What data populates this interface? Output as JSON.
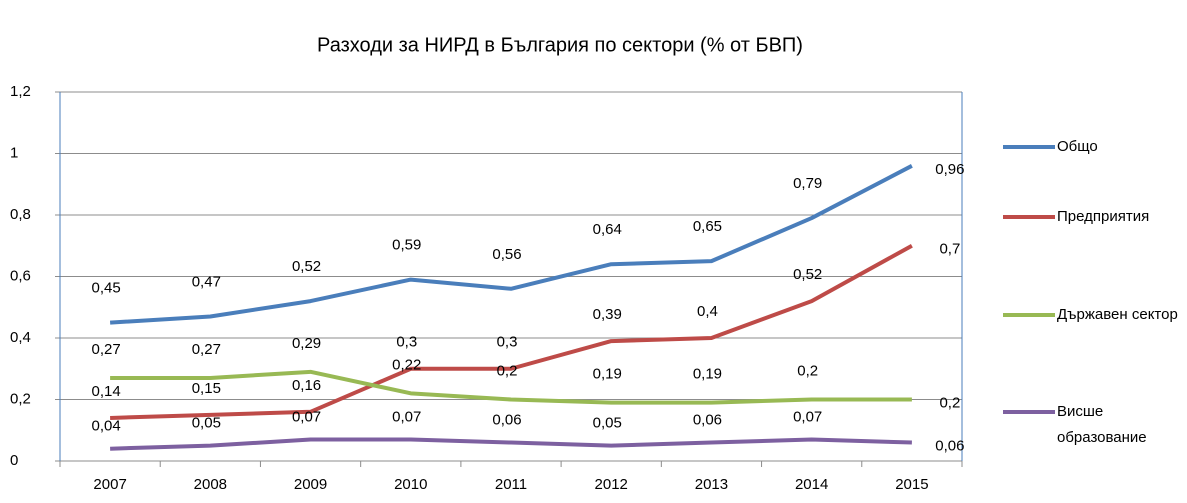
{
  "chart_data": {
    "type": "line",
    "title": "Разходи за НИРД в България по сектори (% от БВП)",
    "categories": [
      "2007",
      "2008",
      "2009",
      "2010",
      "2011",
      "2012",
      "2013",
      "2014",
      "2015"
    ],
    "series": [
      {
        "name": "Общо",
        "color": "#4a7ebb",
        "values": [
          0.45,
          0.47,
          0.52,
          0.59,
          0.56,
          0.64,
          0.65,
          0.79,
          0.96
        ],
        "value_labels": [
          "0,45",
          "0,47",
          "0,52",
          "0,59",
          "0,56",
          "0,64",
          "0,65",
          "0,79",
          "0,96"
        ]
      },
      {
        "name": "Предприятия",
        "color": "#be4b48",
        "values": [
          0.14,
          0.15,
          0.16,
          0.3,
          0.3,
          0.39,
          0.4,
          0.52,
          0.7
        ],
        "value_labels": [
          "0,14",
          "0,15",
          "0,16",
          "0,3",
          "0,3",
          "0,39",
          "0,4",
          "0,52",
          "0,7"
        ]
      },
      {
        "name": "Държавен сектор",
        "color": "#98b954",
        "values": [
          0.27,
          0.27,
          0.29,
          0.22,
          0.2,
          0.19,
          0.19,
          0.2,
          0.2
        ],
        "value_labels": [
          "0,27",
          "0,27",
          "0,29",
          "0,22",
          "0,2",
          "0,19",
          "0,19",
          "0,2",
          "0,2"
        ]
      },
      {
        "name": "Висше образование",
        "color": "#7d60a0",
        "values": [
          0.04,
          0.05,
          0.07,
          0.07,
          0.06,
          0.05,
          0.06,
          0.07,
          0.06
        ],
        "value_labels": [
          "0,04",
          "0,05",
          "0,07",
          "0,07",
          "0,06",
          "0,05",
          "0,06",
          "0,07",
          "0,06"
        ]
      }
    ],
    "ylim": [
      0,
      1.2
    ],
    "yticks": [
      0,
      {
        "value": 0.2,
        "label": "0,2"
      },
      {
        "value": 0.4,
        "label": "0,4"
      },
      {
        "value": 0.6,
        "label": "0,6"
      },
      {
        "value": 0.8,
        "label": "0,8"
      },
      1,
      {
        "value": 1.2,
        "label": "1,2"
      }
    ],
    "grid": true,
    "legend": "right"
  }
}
